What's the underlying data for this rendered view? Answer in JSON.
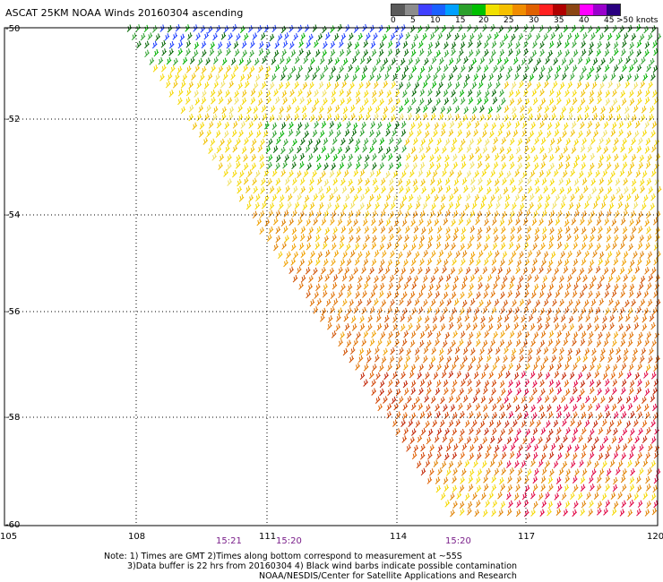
{
  "title": "ASCAT 25KM NOAA Winds 20160304 ascending",
  "legend": {
    "labels": [
      "0",
      "5",
      "10",
      "15",
      "20",
      "25",
      "30",
      "35",
      "40",
      "45",
      ">50 knots"
    ],
    "colors": [
      "#5a5a5a",
      "#8c8c8c",
      "#4040ff",
      "#1a60ff",
      "#00a0ff",
      "#2ba02b",
      "#00c000",
      "#f0e000",
      "#f5c000",
      "#f08c00",
      "#e06000",
      "#ff2020",
      "#b00000",
      "#8b4513",
      "#ff00ff",
      "#9900cc",
      "#2a0080"
    ]
  },
  "map": {
    "lat_labels": [
      "-50",
      "-52",
      "-54",
      "-56",
      "-58",
      "-60"
    ],
    "lon_labels": [
      "105",
      "108",
      "111",
      "114",
      "117",
      "120"
    ],
    "lon_range": [
      105,
      120
    ],
    "lat_range": [
      -50,
      -60
    ]
  },
  "swath_times": [
    "15:21",
    "15:20",
    "15:20"
  ],
  "notes": [
    "Note: 1) Times are GMT 2)Times along bottom correspond to measurement at ~55S",
    "3)Data buffer is 22 hrs from 20160304 4) Black wind barbs indicate possible contamination",
    "NOAA/NESDIS/Center for Satellite Applications and Research"
  ]
}
